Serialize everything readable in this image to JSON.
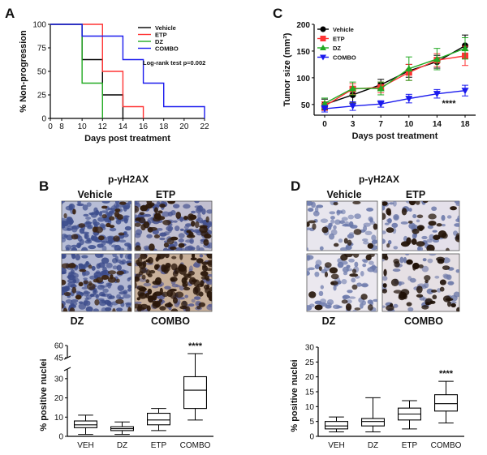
{
  "panels": {
    "A": "A",
    "B": "B",
    "C": "C",
    "D": "D"
  },
  "colors": {
    "Vehicle": "#000000",
    "ETP": "#ff3333",
    "DZ": "#22aa22",
    "COMBO": "#1a1aee"
  },
  "chart_data": [
    {
      "id": "A",
      "type": "line",
      "step": true,
      "xlabel": "Days post treatment",
      "ylabel": "% Non-progression",
      "xlim": [
        0,
        22
      ],
      "ylim": [
        0,
        100
      ],
      "xticks": [
        0,
        8,
        10,
        12,
        14,
        16,
        18,
        20,
        22
      ],
      "yticks": [
        0,
        25,
        50,
        75,
        100
      ],
      "annotation": "Log-rank test p=0.002",
      "legend_position": "top-right",
      "series": [
        {
          "name": "Vehicle",
          "x": [
            0,
            10,
            12,
            14
          ],
          "y": [
            100,
            62.5,
            25,
            0
          ]
        },
        {
          "name": "ETP",
          "x": [
            0,
            12,
            14,
            16
          ],
          "y": [
            100,
            50,
            12.5,
            0
          ]
        },
        {
          "name": "DZ",
          "x": [
            0,
            10,
            12
          ],
          "y": [
            100,
            37.5,
            0
          ]
        },
        {
          "name": "COMBO",
          "x": [
            0,
            10,
            14,
            16,
            18,
            22
          ],
          "y": [
            100,
            87.5,
            62.5,
            37.5,
            12.5,
            0
          ]
        }
      ]
    },
    {
      "id": "C",
      "type": "line",
      "xlabel": "Days post treatment",
      "ylabel": "Tumor size (mm³)",
      "xcategories": [
        "0",
        "3",
        "7",
        "10",
        "14",
        "18"
      ],
      "ylim": [
        30,
        200
      ],
      "yticks": [
        50,
        100,
        150,
        200
      ],
      "annotation": "****",
      "legend_position": "top-left",
      "series": [
        {
          "name": "Vehicle",
          "values": [
            50,
            68,
            87,
            113,
            130,
            160
          ],
          "err": [
            10,
            15,
            10,
            12,
            12,
            20
          ]
        },
        {
          "name": "ETP",
          "values": [
            47,
            79,
            82,
            110,
            133,
            141
          ],
          "err": [
            8,
            10,
            10,
            15,
            12,
            18
          ]
        },
        {
          "name": "DZ",
          "values": [
            52,
            80,
            80,
            117,
            135,
            155
          ],
          "err": [
            10,
            12,
            12,
            22,
            20,
            20
          ]
        },
        {
          "name": "COMBO",
          "values": [
            42,
            47,
            51,
            61,
            70,
            76
          ],
          "err": [
            6,
            8,
            6,
            8,
            8,
            10
          ]
        }
      ]
    },
    {
      "id": "B",
      "type": "box",
      "title": "p-γH2AX",
      "ylabel": "% positive nuclei",
      "categories": [
        "VEH",
        "DZ",
        "ETP",
        "COMBO"
      ],
      "ylim": [
        0,
        60
      ],
      "yticks": [
        0,
        10,
        20,
        30,
        45,
        60
      ],
      "broken_axis": {
        "break_from": 35,
        "break_to": 45
      },
      "annotation": {
        "category": "COMBO",
        "text": "****"
      },
      "boxes": [
        {
          "min": 1,
          "q1": 4.5,
          "median": 6,
          "q3": 8,
          "max": 11
        },
        {
          "min": 1,
          "q1": 3,
          "median": 4,
          "q3": 5,
          "max": 7.5
        },
        {
          "min": 3,
          "q1": 6,
          "median": 8.5,
          "q3": 12,
          "max": 14.5
        },
        {
          "min": 8.5,
          "q1": 14.5,
          "median": 24,
          "q3": 31,
          "max": 50
        }
      ]
    },
    {
      "id": "D",
      "type": "box",
      "title": "p-γH2AX",
      "ylabel": "% positive nuclei",
      "categories": [
        "VEH",
        "DZ",
        "ETP",
        "COMBO"
      ],
      "ylim": [
        0,
        30
      ],
      "yticks": [
        0,
        5,
        10,
        15,
        20,
        25,
        30
      ],
      "annotation": {
        "category": "COMBO",
        "text": "****"
      },
      "boxes": [
        {
          "min": 1.5,
          "q1": 2.5,
          "median": 3.5,
          "q3": 5,
          "max": 6.5
        },
        {
          "min": 1.5,
          "q1": 3.5,
          "median": 5,
          "q3": 6,
          "max": 13
        },
        {
          "min": 2.5,
          "q1": 5.5,
          "median": 7.5,
          "q3": 9.5,
          "max": 12
        },
        {
          "min": 4.5,
          "q1": 8.5,
          "median": 11,
          "q3": 14,
          "max": 18.5
        }
      ]
    }
  ],
  "micrographs": {
    "B": {
      "title": "p-γH2AX",
      "top_left": "Vehicle",
      "top_right": "ETP",
      "bottom_left": "DZ",
      "bottom_right": "COMBO"
    },
    "D": {
      "title": "p-γH2AX",
      "top_left": "Vehicle",
      "top_right": "ETP",
      "bottom_left": "DZ",
      "bottom_right": "COMBO"
    }
  }
}
